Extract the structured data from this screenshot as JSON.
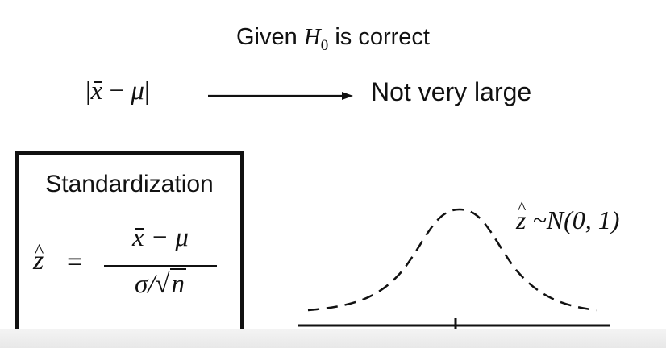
{
  "title": {
    "prefix": "Given",
    "hyp_symbol": "H",
    "hyp_subscript": "0",
    "suffix": "is correct"
  },
  "relation": {
    "abs_left": "|",
    "xbar": "x",
    "minus": "−",
    "mu": "μ",
    "abs_right": "|",
    "result": "Not very large"
  },
  "standardization": {
    "heading": "Standardization",
    "zhat": "z",
    "equals": "=",
    "numerator_x": "x",
    "numerator_rest": " − μ",
    "denominator_sigma": "σ/",
    "sqrt_symbol": "√",
    "denominator_n": "n"
  },
  "distribution": {
    "zhat": "z",
    "label": " ~N(0, 1)"
  },
  "colors": {
    "ink": "#111111",
    "background": "#ffffff"
  }
}
